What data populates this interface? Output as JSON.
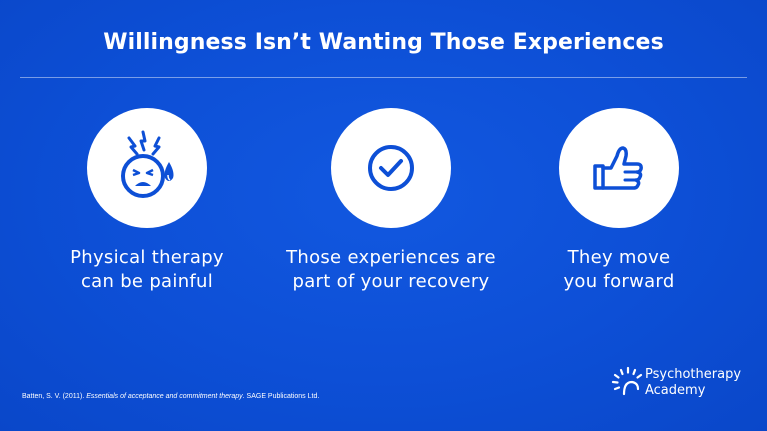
{
  "slide": {
    "title": "Willingness Isn’t Wanting Those Experiences",
    "columns": [
      {
        "icon": "stressed-face-icon",
        "caption_line1": "Physical therapy",
        "caption_line2": "can be painful"
      },
      {
        "icon": "check-circle-icon",
        "caption_line1": "Those experiences are",
        "caption_line2": "part of your recovery"
      },
      {
        "icon": "thumbs-up-icon",
        "caption_line1": "They move",
        "caption_line2": "you forward"
      }
    ],
    "citation_prefix": "Batten, S. V. (2011). ",
    "citation_title": "Essentials of acceptance and commitment therapy",
    "citation_suffix": ". SAGE Publications Ltd.",
    "logo_line1": "Psychotherapy",
    "logo_line2": "Academy"
  },
  "colors": {
    "background": "#0d4fd6",
    "icon_blue": "#0d4fd6",
    "text": "#ffffff"
  }
}
